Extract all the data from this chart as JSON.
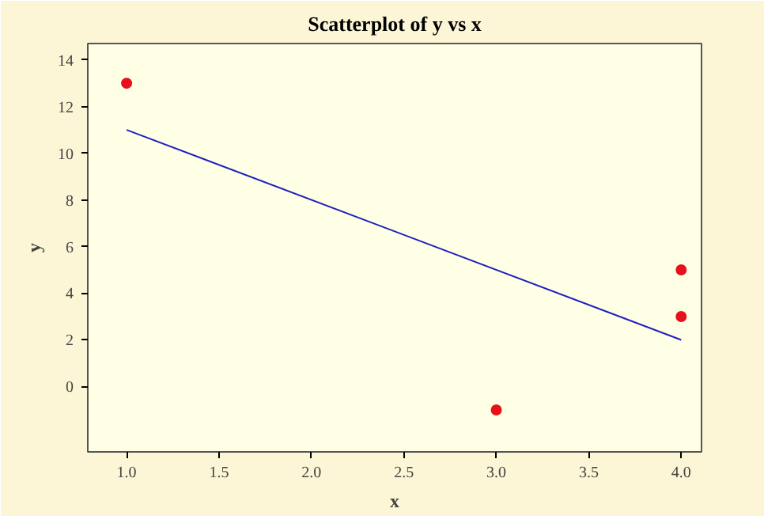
{
  "chart_data": {
    "type": "scatter",
    "title": "Scatterplot of y vs x",
    "xlabel": "x",
    "ylabel": "y",
    "xlim": [
      0.79,
      4.11
    ],
    "ylim": [
      -2.8,
      14.7
    ],
    "xticks": [
      {
        "value": 1,
        "label": "1.0"
      },
      {
        "value": 1.5,
        "label": "1.5"
      },
      {
        "value": 2,
        "label": "2.0"
      },
      {
        "value": 2.5,
        "label": "2.5"
      },
      {
        "value": 3,
        "label": "3.0"
      },
      {
        "value": 3.5,
        "label": "3.5"
      },
      {
        "value": 4,
        "label": "4.0"
      }
    ],
    "yticks": [
      0,
      2,
      4,
      6,
      8,
      10,
      12,
      14
    ],
    "grid": false,
    "series": [
      {
        "color": "#e8101a",
        "marker": "circle",
        "x": [
          1,
          3,
          4,
          4
        ],
        "values": [
          13,
          -1,
          5,
          3
        ]
      },
      {
        "type": "line",
        "color": "#2020c0",
        "marker": "none",
        "x": [
          1,
          4
        ],
        "values": [
          11,
          2
        ]
      }
    ]
  }
}
